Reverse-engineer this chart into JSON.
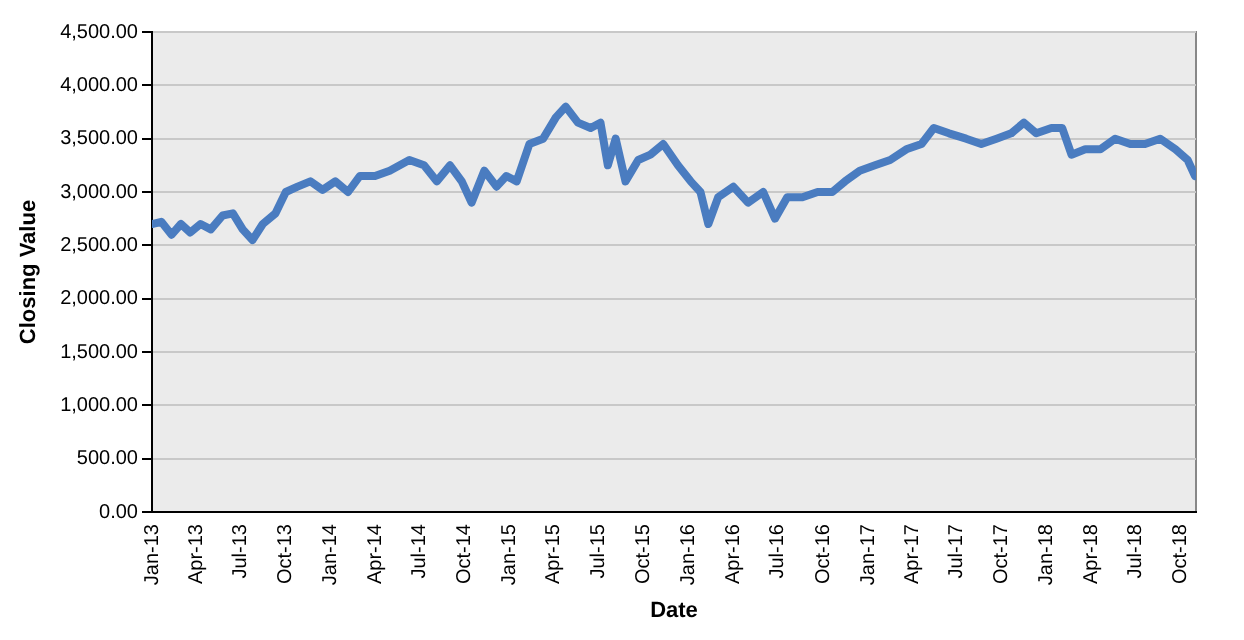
{
  "chart_data": {
    "type": "line",
    "xlabel": "Date",
    "ylabel": "Closing Value",
    "x": [
      "2013-01-01",
      "2013-01-20",
      "2013-02-10",
      "2013-03-01",
      "2013-03-20",
      "2013-04-10",
      "2013-05-01",
      "2013-05-25",
      "2013-06-15",
      "2013-07-05",
      "2013-07-25",
      "2013-08-15",
      "2013-09-10",
      "2013-10-01",
      "2013-10-25",
      "2013-11-20",
      "2013-12-15",
      "2014-01-10",
      "2014-02-05",
      "2014-03-01",
      "2014-04-01",
      "2014-05-01",
      "2014-06-10",
      "2014-07-10",
      "2014-08-05",
      "2014-09-01",
      "2014-09-25",
      "2014-10-15",
      "2014-11-10",
      "2014-12-05",
      "2014-12-25",
      "2015-01-15",
      "2015-02-10",
      "2015-03-10",
      "2015-04-05",
      "2015-04-25",
      "2015-05-20",
      "2015-06-15",
      "2015-07-05",
      "2015-07-20",
      "2015-08-05",
      "2015-08-25",
      "2015-09-20",
      "2015-10-15",
      "2015-11-10",
      "2015-12-10",
      "2016-01-05",
      "2016-01-25",
      "2016-02-10",
      "2016-03-01",
      "2016-04-01",
      "2016-05-01",
      "2016-06-01",
      "2016-06-25",
      "2016-07-20",
      "2016-08-20",
      "2016-09-20",
      "2016-10-20",
      "2016-11-15",
      "2016-12-15",
      "2017-01-15",
      "2017-02-15",
      "2017-03-20",
      "2017-04-20",
      "2017-05-15",
      "2017-06-15",
      "2017-07-20",
      "2017-08-20",
      "2017-09-20",
      "2017-10-20",
      "2017-11-15",
      "2017-12-10",
      "2018-01-10",
      "2018-02-01",
      "2018-02-20",
      "2018-03-20",
      "2018-04-20",
      "2018-05-20",
      "2018-06-20",
      "2018-07-20",
      "2018-08-20",
      "2018-09-20",
      "2018-10-15",
      "2018-10-30"
    ],
    "values": [
      2700,
      2720,
      2600,
      2700,
      2620,
      2700,
      2650,
      2780,
      2800,
      2650,
      2550,
      2700,
      2800,
      3000,
      3050,
      3100,
      3020,
      3100,
      3000,
      3150,
      3150,
      3200,
      3300,
      3250,
      3100,
      3250,
      3100,
      2900,
      3200,
      3050,
      3150,
      3100,
      3450,
      3500,
      3700,
      3800,
      3650,
      3600,
      3650,
      3250,
      3500,
      3100,
      3300,
      3350,
      3450,
      3250,
      3100,
      3000,
      2700,
      2950,
      3050,
      2900,
      3000,
      2750,
      2950,
      2950,
      3000,
      3000,
      3100,
      3200,
      3250,
      3300,
      3400,
      3450,
      3600,
      3550,
      3500,
      3450,
      3500,
      3550,
      3650,
      3550,
      3600,
      3600,
      3350,
      3400,
      3400,
      3500,
      3450,
      3450,
      3500,
      3400,
      3300,
      3150
    ],
    "color": "#4a7cc0",
    "xlim": [
      "2013-01-01",
      "2018-11-01"
    ],
    "xticks": [
      {
        "value": "2013-01-01",
        "label": "Jan-13"
      },
      {
        "value": "2013-04-01",
        "label": "Apr-13"
      },
      {
        "value": "2013-07-01",
        "label": "Jul-13"
      },
      {
        "value": "2013-10-01",
        "label": "Oct-13"
      },
      {
        "value": "2014-01-01",
        "label": "Jan-14"
      },
      {
        "value": "2014-04-01",
        "label": "Apr-14"
      },
      {
        "value": "2014-07-01",
        "label": "Jul-14"
      },
      {
        "value": "2014-10-01",
        "label": "Oct-14"
      },
      {
        "value": "2015-01-01",
        "label": "Jan-15"
      },
      {
        "value": "2015-04-01",
        "label": "Apr-15"
      },
      {
        "value": "2015-07-01",
        "label": "Jul-15"
      },
      {
        "value": "2015-10-01",
        "label": "Oct-15"
      },
      {
        "value": "2016-01-01",
        "label": "Jan-16"
      },
      {
        "value": "2016-04-01",
        "label": "Apr-16"
      },
      {
        "value": "2016-07-01",
        "label": "Jul-16"
      },
      {
        "value": "2016-10-01",
        "label": "Oct-16"
      },
      {
        "value": "2017-01-01",
        "label": "Jan-17"
      },
      {
        "value": "2017-04-01",
        "label": "Apr-17"
      },
      {
        "value": "2017-07-01",
        "label": "Jul-17"
      },
      {
        "value": "2017-10-01",
        "label": "Oct-17"
      },
      {
        "value": "2018-01-01",
        "label": "Jan-18"
      },
      {
        "value": "2018-04-01",
        "label": "Apr-18"
      },
      {
        "value": "2018-07-01",
        "label": "Jul-18"
      },
      {
        "value": "2018-10-01",
        "label": "Oct-18"
      }
    ],
    "ylim": [
      0,
      4500
    ],
    "yticks": [
      {
        "value": 0,
        "label": "0.00"
      },
      {
        "value": 500,
        "label": "500.00"
      },
      {
        "value": 1000,
        "label": "1,000.00"
      },
      {
        "value": 1500,
        "label": "1,500.00"
      },
      {
        "value": 2000,
        "label": "2,000.00"
      },
      {
        "value": 2500,
        "label": "2,500.00"
      },
      {
        "value": 3000,
        "label": "3,000.00"
      },
      {
        "value": 3500,
        "label": "3,500.00"
      },
      {
        "value": 4000,
        "label": "4,000.00"
      },
      {
        "value": 4500,
        "label": "4,500.00"
      }
    ],
    "grid": "y",
    "legend": false,
    "marker": "none",
    "line_style": "solid"
  }
}
